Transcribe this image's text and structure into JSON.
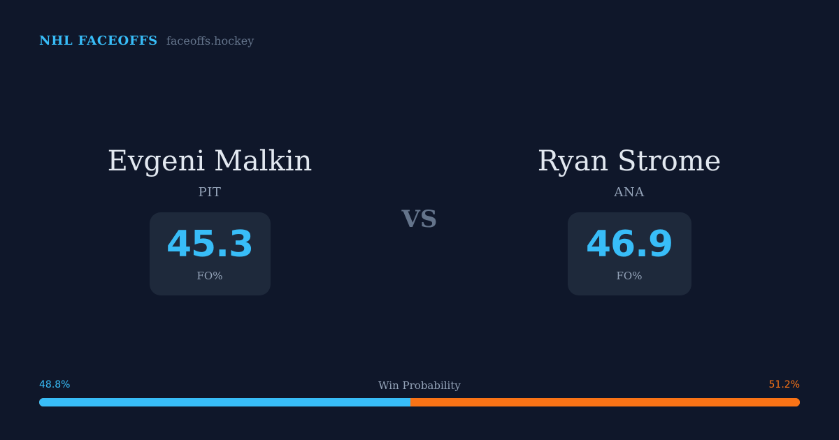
{
  "brand": {
    "title": "NHL FACEOFFS",
    "site": "faceoffs.hockey"
  },
  "players": [
    {
      "name": "Evgeni Malkin",
      "team": "PIT",
      "fo_pct": "45.3",
      "stat_label": "FO%"
    },
    {
      "name": "Ryan Strome",
      "team": "ANA",
      "fo_pct": "46.9",
      "stat_label": "FO%"
    }
  ],
  "vs_label": "VS",
  "win_probability": {
    "title": "Win Probability",
    "left_label": "48.8%",
    "right_label": "51.2%",
    "left_fraction": 0.488,
    "right_fraction": 0.512
  },
  "colors": {
    "background": "#0f172a",
    "accent_left": "#38bdf8",
    "accent_right": "#f97316",
    "card": "#1e293b"
  }
}
